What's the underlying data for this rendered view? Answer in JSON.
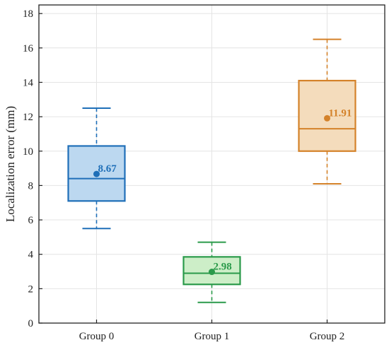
{
  "chart_data": {
    "type": "box",
    "ylabel": "Localization error (mm)",
    "ylim": [
      0,
      18.5
    ],
    "yticks": [
      0,
      2,
      4,
      6,
      8,
      10,
      12,
      14,
      16,
      18
    ],
    "grid": true,
    "categories": [
      "Group 0",
      "Group 1",
      "Group 2"
    ],
    "boxes": [
      {
        "category": "Group 0",
        "whisker_low": 5.5,
        "q1": 7.1,
        "median": 8.4,
        "q3": 10.3,
        "whisker_high": 12.5,
        "mean": 8.67,
        "mean_label": "8.67",
        "color": "#1f6fb8",
        "fill": "#bcd8f0"
      },
      {
        "category": "Group 1",
        "whisker_low": 1.2,
        "q1": 2.25,
        "median": 2.9,
        "q3": 3.85,
        "whisker_high": 4.7,
        "mean": 2.98,
        "mean_label": "2.98",
        "color": "#2a9a4a",
        "fill": "#cdeec8"
      },
      {
        "category": "Group 2",
        "whisker_low": 8.1,
        "q1": 10.0,
        "median": 11.3,
        "q3": 14.1,
        "whisker_high": 16.5,
        "mean": 11.91,
        "mean_label": "11.91",
        "color": "#d4822a",
        "fill": "#f4dcbc"
      }
    ]
  }
}
